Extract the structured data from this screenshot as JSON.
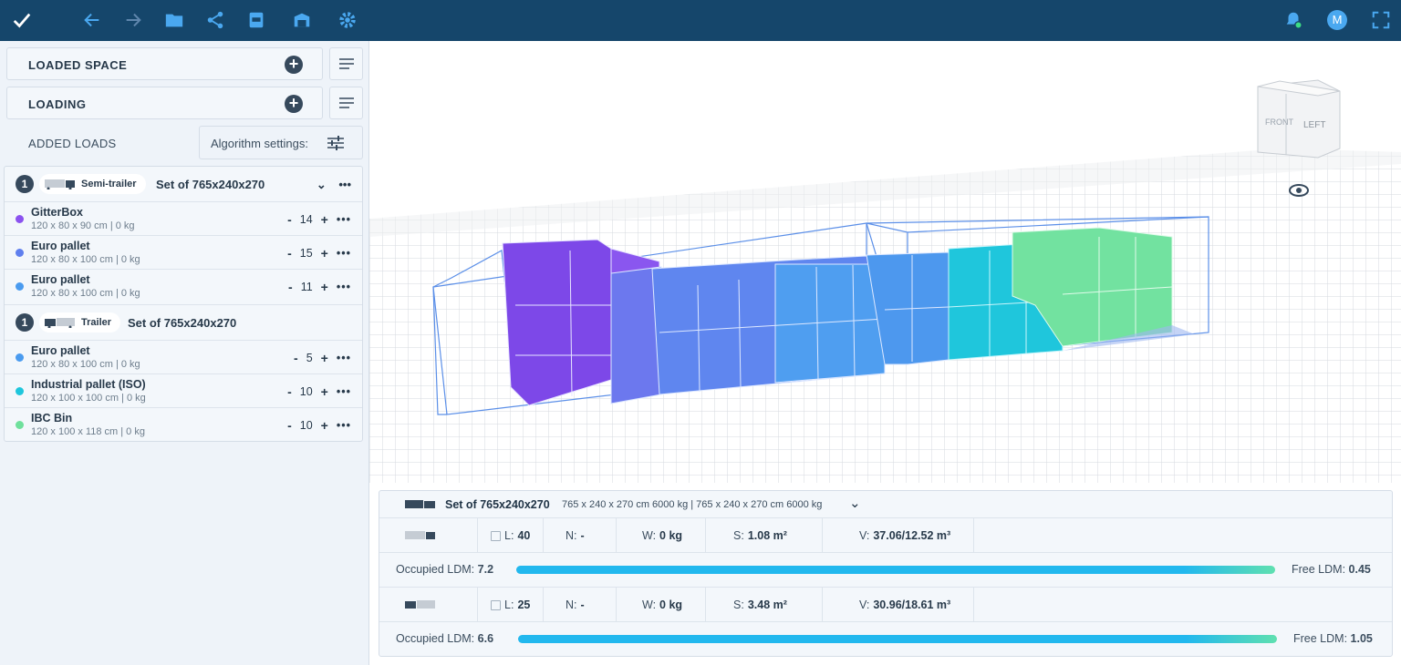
{
  "toolbar": {
    "icons": [
      "check-logo-icon",
      "back-arrow-icon",
      "forward-arrow-icon",
      "folder-icon",
      "share-icon",
      "pdf-icon",
      "warehouse-icon",
      "settings-icon"
    ],
    "right_icons": [
      "notification-bell-icon",
      "user-avatar",
      "fullscreen-icon"
    ],
    "avatar_initial": "M"
  },
  "sidebar": {
    "loaded_space_label": "LOADED SPACE",
    "loading_label": "LOADING",
    "added_loads_label": "ADDED LOADS",
    "algorithm_settings_label": "Algorithm settings:"
  },
  "groups": [
    {
      "count": "1",
      "vehicle": "Semi-trailer",
      "set_title": "Set of 765x240x270",
      "items": [
        {
          "name": "GitterBox",
          "dims": "120 x 80 x 90 cm | 0 kg",
          "qty": "14",
          "color": "#8b52ef"
        },
        {
          "name": "Euro pallet",
          "dims": "120 x 80 x 100 cm | 0 kg",
          "qty": "15",
          "color": "#5f7fee"
        },
        {
          "name": "Euro pallet",
          "dims": "120 x 80 x 100 cm | 0 kg",
          "qty": "11",
          "color": "#4a9bef"
        }
      ]
    },
    {
      "count": "1",
      "vehicle": "Trailer",
      "set_title": "Set of 765x240x270",
      "items": [
        {
          "name": "Euro pallet",
          "dims": "120 x 80 x 100 cm | 0 kg",
          "qty": "5",
          "color": "#4a9bef"
        },
        {
          "name": "Industrial pallet (ISO)",
          "dims": "120 x 100 x 100 cm | 0 kg",
          "qty": "10",
          "color": "#1ec6dc"
        },
        {
          "name": "IBC Bin",
          "dims": "120 x 100 x 118 cm | 0 kg",
          "qty": "10",
          "color": "#6fe09c"
        }
      ]
    }
  ],
  "viewport": {
    "view_cube_front": "FRONT",
    "view_cube_left": "LEFT"
  },
  "stats": {
    "set_title": "Set of 765x240x270",
    "set_details": "765 x 240 x 270 cm 6000 kg | 765 x 240 x 270 cm 6000 kg",
    "vehicles": [
      {
        "L_label": "L:",
        "L": "40",
        "N_label": "N:",
        "N": "-",
        "W_label": "W:",
        "W": "0 kg",
        "S_label": "S:",
        "S": "1.08 m²",
        "V_label": "V:",
        "V": "37.06/12.52 m³",
        "occupied_label": "Occupied LDM:",
        "occupied": "7.2",
        "free_label": "Free LDM:",
        "free": "0.45"
      },
      {
        "L_label": "L:",
        "L": "25",
        "N_label": "N:",
        "N": "-",
        "W_label": "W:",
        "W": "0 kg",
        "S_label": "S:",
        "S": "3.48 m²",
        "V_label": "V:",
        "V": "30.96/18.61 m³",
        "occupied_label": "Occupied LDM:",
        "occupied": "6.6",
        "free_label": "Free LDM:",
        "free": "1.05"
      }
    ]
  }
}
